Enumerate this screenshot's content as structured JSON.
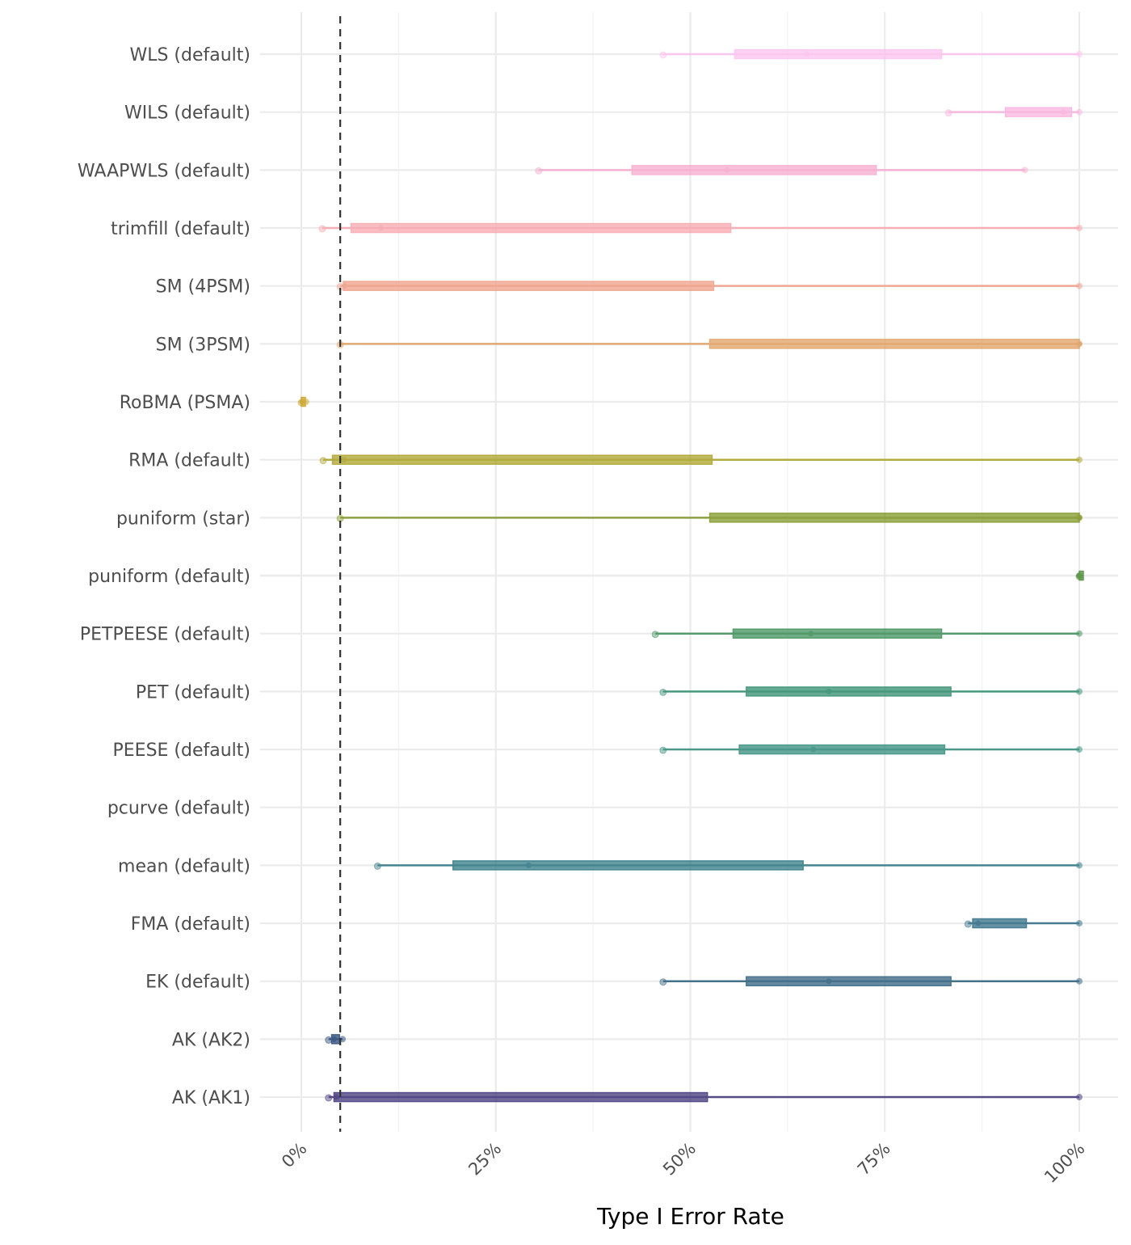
{
  "chart_data": {
    "type": "boxplot",
    "title": "",
    "xlabel": "Type I Error Rate",
    "ylabel": "",
    "xlim": [
      0,
      100
    ],
    "x_ticks": [
      "0%",
      "25%",
      "50%",
      "75%",
      "100%"
    ],
    "x_tick_values": [
      0,
      25,
      50,
      75,
      100
    ],
    "reference_line": {
      "x": 5,
      "style": "dashed",
      "color": "#333333"
    },
    "grid": true,
    "legend": "none",
    "categories": [
      {
        "label": "WLS (default)",
        "min": 46.5,
        "q1": 55.7,
        "median": 65,
        "q3": 82.3,
        "max": 100,
        "color": "#fcc0ee"
      },
      {
        "label": "WILS (default)",
        "min": 83.2,
        "q1": 90.5,
        "median": 98,
        "q3": 99,
        "max": 100,
        "color": "#f9b0de"
      },
      {
        "label": "WAAPWLS (default)",
        "min": 30.5,
        "q1": 42.5,
        "median": 54.7,
        "q3": 73.9,
        "max": 93,
        "color": "#f7a8cc"
      },
      {
        "label": "trimfill (default)",
        "min": 2.7,
        "q1": 6.4,
        "median": 10.2,
        "q3": 55.2,
        "max": 100,
        "color": "#f8a4ac"
      },
      {
        "label": "SM (4PSM)",
        "min": 5,
        "q1": 5.4,
        "median": 5.6,
        "q3": 53,
        "max": 100,
        "color": "#ee9c84"
      },
      {
        "label": "SM (3PSM)",
        "min": 5,
        "q1": 52.5,
        "median": 100,
        "q3": 100,
        "max": 100,
        "color": "#e09e5e"
      },
      {
        "label": "RoBMA (PSMA)",
        "min": 0,
        "q1": 0,
        "median": 0.1,
        "q3": 0.3,
        "max": 0.6,
        "color": "#c9a020"
      },
      {
        "label": "RMA (default)",
        "min": 2.8,
        "q1": 4,
        "median": 5.5,
        "q3": 52.8,
        "max": 100,
        "color": "#a9a022"
      },
      {
        "label": "puniform (star)",
        "min": 5,
        "q1": 52.5,
        "median": 100,
        "q3": 100,
        "max": 100,
        "color": "#7d9420"
      },
      {
        "label": "puniform (default)",
        "min": 100,
        "q1": 100,
        "median": 100,
        "q3": 100,
        "max": 100,
        "color": "#4a8a34"
      },
      {
        "label": "PETPEESE (default)",
        "min": 45.5,
        "q1": 55.5,
        "median": 65.5,
        "q3": 82.3,
        "max": 100,
        "color": "#3a8c55"
      },
      {
        "label": "PET (default)",
        "min": 46.5,
        "q1": 57.2,
        "median": 67.8,
        "q3": 83.5,
        "max": 100,
        "color": "#2c8a6a"
      },
      {
        "label": "PEESE (default)",
        "min": 46.5,
        "q1": 56.3,
        "median": 65.8,
        "q3": 82.7,
        "max": 100,
        "color": "#2e8a78"
      },
      {
        "label": "pcurve (default)",
        "min": null,
        "q1": null,
        "median": null,
        "q3": null,
        "max": null,
        "color": "#2a8080"
      },
      {
        "label": "mean (default)",
        "min": 9.8,
        "q1": 19.5,
        "median": 29.2,
        "q3": 64.5,
        "max": 100,
        "color": "#2a7480"
      },
      {
        "label": "FMA (default)",
        "min": 85.7,
        "q1": 86.3,
        "median": 87,
        "q3": 93.2,
        "max": 100,
        "color": "#2a6882"
      },
      {
        "label": "EK (default)",
        "min": 46.5,
        "q1": 57.2,
        "median": 67.8,
        "q3": 83.5,
        "max": 100,
        "color": "#2a5c7a"
      },
      {
        "label": "AK (AK2)",
        "min": 3.5,
        "q1": 3.9,
        "median": 4.2,
        "q3": 4.9,
        "max": 5.3,
        "color": "#1f4274"
      },
      {
        "label": "AK (AK1)",
        "min": 3.5,
        "q1": 4.2,
        "median": 4.5,
        "q3": 52.2,
        "max": 100,
        "color": "#3b2f74"
      }
    ]
  }
}
